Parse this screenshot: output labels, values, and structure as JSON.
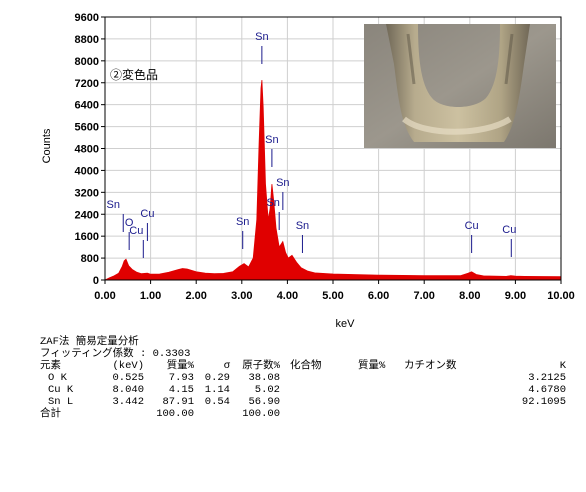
{
  "chart_data": {
    "type": "line",
    "xlabel": "keV",
    "ylabel": "Counts",
    "xlim": [
      0.0,
      10.0
    ],
    "ylim": [
      0,
      9600
    ],
    "x_ticks": [
      "0.00",
      "1.00",
      "2.00",
      "3.00",
      "4.00",
      "5.00",
      "6.00",
      "7.00",
      "8.00",
      "9.00",
      "10.00"
    ],
    "y_ticks": [
      "0",
      "800",
      "1600",
      "2400",
      "3200",
      "4000",
      "4800",
      "5600",
      "6400",
      "7200",
      "8000",
      "8800",
      "9600"
    ],
    "sample_label": "②変色品",
    "series": [
      {
        "color": "#e00000",
        "x": [
          0.0,
          0.1,
          0.2,
          0.3,
          0.38,
          0.42,
          0.46,
          0.52,
          0.6,
          0.7,
          0.8,
          0.93,
          1.0,
          1.2,
          1.4,
          1.6,
          1.7,
          1.8,
          2.0,
          2.2,
          2.4,
          2.6,
          2.8,
          2.95,
          3.05,
          3.15,
          3.25,
          3.33,
          3.38,
          3.42,
          3.44,
          3.47,
          3.52,
          3.58,
          3.62,
          3.66,
          3.7,
          3.75,
          3.82,
          3.9,
          3.96,
          4.02,
          4.1,
          4.2,
          4.3,
          4.45,
          4.6,
          5.0,
          6.0,
          7.0,
          7.8,
          7.96,
          8.04,
          8.14,
          8.3,
          8.8,
          8.9,
          9.0,
          9.2,
          10.0
        ],
        "y": [
          0,
          80,
          150,
          250,
          500,
          700,
          760,
          520,
          380,
          280,
          230,
          250,
          210,
          220,
          280,
          380,
          420,
          400,
          300,
          250,
          230,
          240,
          300,
          500,
          600,
          480,
          800,
          2200,
          5000,
          7000,
          7300,
          6300,
          3500,
          2200,
          2600,
          3500,
          2900,
          1900,
          1200,
          1400,
          1000,
          800,
          900,
          650,
          450,
          320,
          260,
          220,
          180,
          160,
          160,
          250,
          300,
          200,
          150,
          130,
          160,
          140,
          130,
          120
        ]
      }
    ],
    "peak_labels": [
      {
        "text": "Sn",
        "x": 0.4,
        "y": 8080
      },
      {
        "text": "O",
        "x": 0.53,
        "y": 7900
      },
      {
        "text": "Cu",
        "x": 0.93,
        "y": 7950
      },
      {
        "text": "Cu",
        "x": 0.84,
        "y": 7950
      },
      {
        "text": "Sn",
        "x": 3.44,
        "y": 9300
      },
      {
        "text": "Sn",
        "x": 3.66,
        "y": 8050
      },
      {
        "text": "Sn",
        "x": 3.9,
        "y": 7960
      },
      {
        "text": "Sn",
        "x": 3.82,
        "y": 7950
      },
      {
        "text": "Sn",
        "x": 3.02,
        "y": 7950
      },
      {
        "text": "Sn",
        "x": 4.33,
        "y": 7950
      },
      {
        "text": "Cu",
        "x": 8.04,
        "y": 7950
      },
      {
        "text": "Cu",
        "x": 8.91,
        "y": 7950
      }
    ]
  },
  "table": {
    "heading": "ZAF法 簡易定量分析",
    "fitting": "フィッティング係数 : 0.3303",
    "columns": [
      "元素",
      "(keV)",
      "質量%",
      "σ",
      "原子数%",
      "化合物",
      "質量%",
      "カチオン数",
      "K"
    ],
    "rows": [
      [
        "O K",
        "0.525",
        "7.93",
        "0.29",
        "38.08",
        "",
        "",
        "",
        "3.2125"
      ],
      [
        "Cu K",
        "8.040",
        "4.15",
        "1.14",
        "5.02",
        "",
        "",
        "",
        "4.6780"
      ],
      [
        "Sn L",
        "3.442",
        "87.91",
        "0.54",
        "56.90",
        "",
        "",
        "",
        "92.1095"
      ]
    ],
    "total": [
      "合計",
      "",
      "100.00",
      "",
      "100.00",
      "",
      "",
      "",
      ""
    ]
  }
}
